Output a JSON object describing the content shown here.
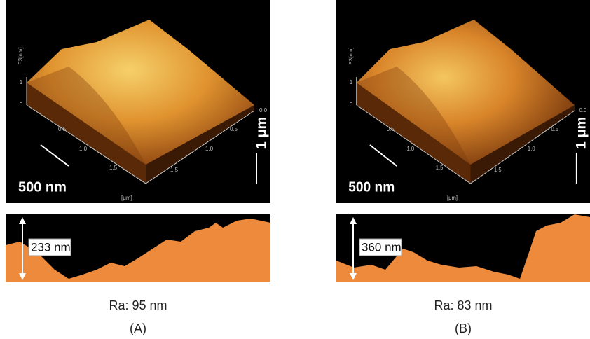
{
  "panels": [
    {
      "surface_labels": {
        "z_unit": "E3[nm]",
        "z_ticks": [
          "1",
          "0"
        ],
        "x_ticks": [
          "0.5",
          "1.0",
          "1.5"
        ],
        "y_ticks": [
          "0.0",
          "0.5",
          "1.0",
          "1.5"
        ],
        "x_unit": "[μm]"
      },
      "scale_bar_h": "500 nm",
      "scale_bar_v": "1 μm",
      "profile_height": "233 nm",
      "roughness": "Ra: 95 nm",
      "label": "(A)"
    },
    {
      "surface_labels": {
        "z_unit": "E3[nm]",
        "z_ticks": [
          "1",
          "0"
        ],
        "x_ticks": [
          "0.5",
          "1.0",
          "1.5"
        ],
        "y_ticks": [
          "0.0",
          "0.5",
          "1.0",
          "1.5"
        ],
        "x_unit": "[μm]"
      },
      "scale_bar_h": "500 nm",
      "scale_bar_v": "1 μm",
      "profile_height": "360 nm",
      "roughness": "Ra: 83 nm",
      "label": "(B)"
    }
  ]
}
